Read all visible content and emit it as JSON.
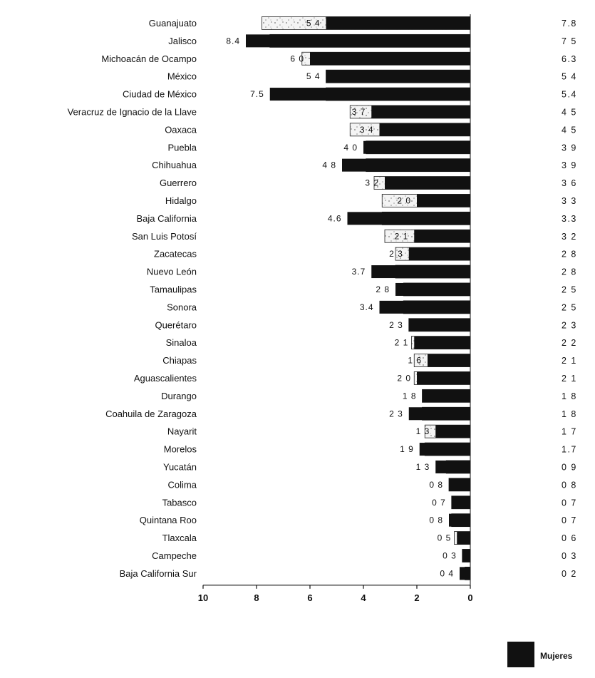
{
  "chart_data": {
    "type": "bar",
    "orientation": "horizontal-reversed",
    "categories": [
      "Guanajuato",
      "Jalisco",
      "Michoacán de Ocampo",
      "México",
      "Ciudad de México",
      "Veracruz de Ignacio de la Llave",
      "Oaxaca",
      "Puebla",
      "Chihuahua",
      "Guerrero",
      "Hidalgo",
      "Baja California",
      "San Luis Potosí",
      "Zacatecas",
      "Nuevo León",
      "Tamaulipas",
      "Sonora",
      "Querétaro",
      "Sinaloa",
      "Chiapas",
      "Aguascalientes",
      "Durango",
      "Coahuila de Zaragoza",
      "Nayarit",
      "Morelos",
      "Yucatán",
      "Colima",
      "Tabasco",
      "Quintana Roo",
      "Tlaxcala",
      "Campeche",
      "Baja California Sur"
    ],
    "series": [
      {
        "name": "Mujeres",
        "values": [
          5.4,
          8.4,
          6.0,
          5.4,
          7.5,
          3.7,
          3.4,
          4.0,
          4.8,
          3.2,
          2.0,
          4.6,
          2.1,
          2.3,
          3.7,
          2.8,
          3.4,
          2.3,
          2.1,
          1.6,
          2.0,
          1.8,
          2.3,
          1.3,
          1.9,
          1.3,
          0.8,
          0.7,
          0.8,
          0.5,
          0.3,
          0.4
        ],
        "value_labels": [
          "5 4",
          "8.4",
          "6 0",
          "5 4",
          "7.5",
          "3 7",
          "3 4",
          "4 0",
          "4 8",
          "3 2",
          "2 0",
          "4.6",
          "2 1",
          "2 3",
          "3.7",
          "2 8",
          "3.4",
          "2 3",
          "2 1",
          "1 6",
          "2 0",
          "1 8",
          "2 3",
          "1 3",
          "1 9",
          "1 3",
          "0 8",
          "0 7",
          "0 8",
          "0 5",
          "0 3",
          "0 4"
        ],
        "color": "#111111"
      },
      {
        "name": "",
        "values": [
          7.8,
          7.5,
          6.3,
          5.4,
          5.4,
          4.5,
          4.5,
          3.9,
          3.9,
          3.6,
          3.3,
          3.3,
          3.2,
          2.8,
          2.8,
          2.5,
          2.5,
          2.3,
          2.2,
          2.1,
          2.1,
          1.8,
          1.8,
          1.7,
          1.7,
          0.9,
          0.8,
          0.7,
          0.7,
          0.6,
          0.3,
          0.2
        ],
        "value_labels": [
          "7.8",
          "7 5",
          "6.3",
          "5 4",
          "5.4",
          "4 5",
          "4 5",
          "3 9",
          "3 9",
          "3 6",
          "3 3",
          "3.3",
          "3 2",
          "2 8",
          "2 8",
          "2 5",
          "2 5",
          "2 3",
          "2 2",
          "2 1",
          "2 1",
          "1 8",
          "1 8",
          "1 7",
          "1.7",
          "0 9",
          "0 8",
          "0 7",
          "0 7",
          "0 6",
          "0 3",
          "0 2"
        ]
      }
    ],
    "xticks": [
      "10",
      "8",
      "6",
      "4",
      "2",
      "0"
    ],
    "xlim": [
      10,
      0
    ],
    "legend": {
      "label": "Mujeres",
      "color": "#111111",
      "position": "bottom-right"
    }
  }
}
